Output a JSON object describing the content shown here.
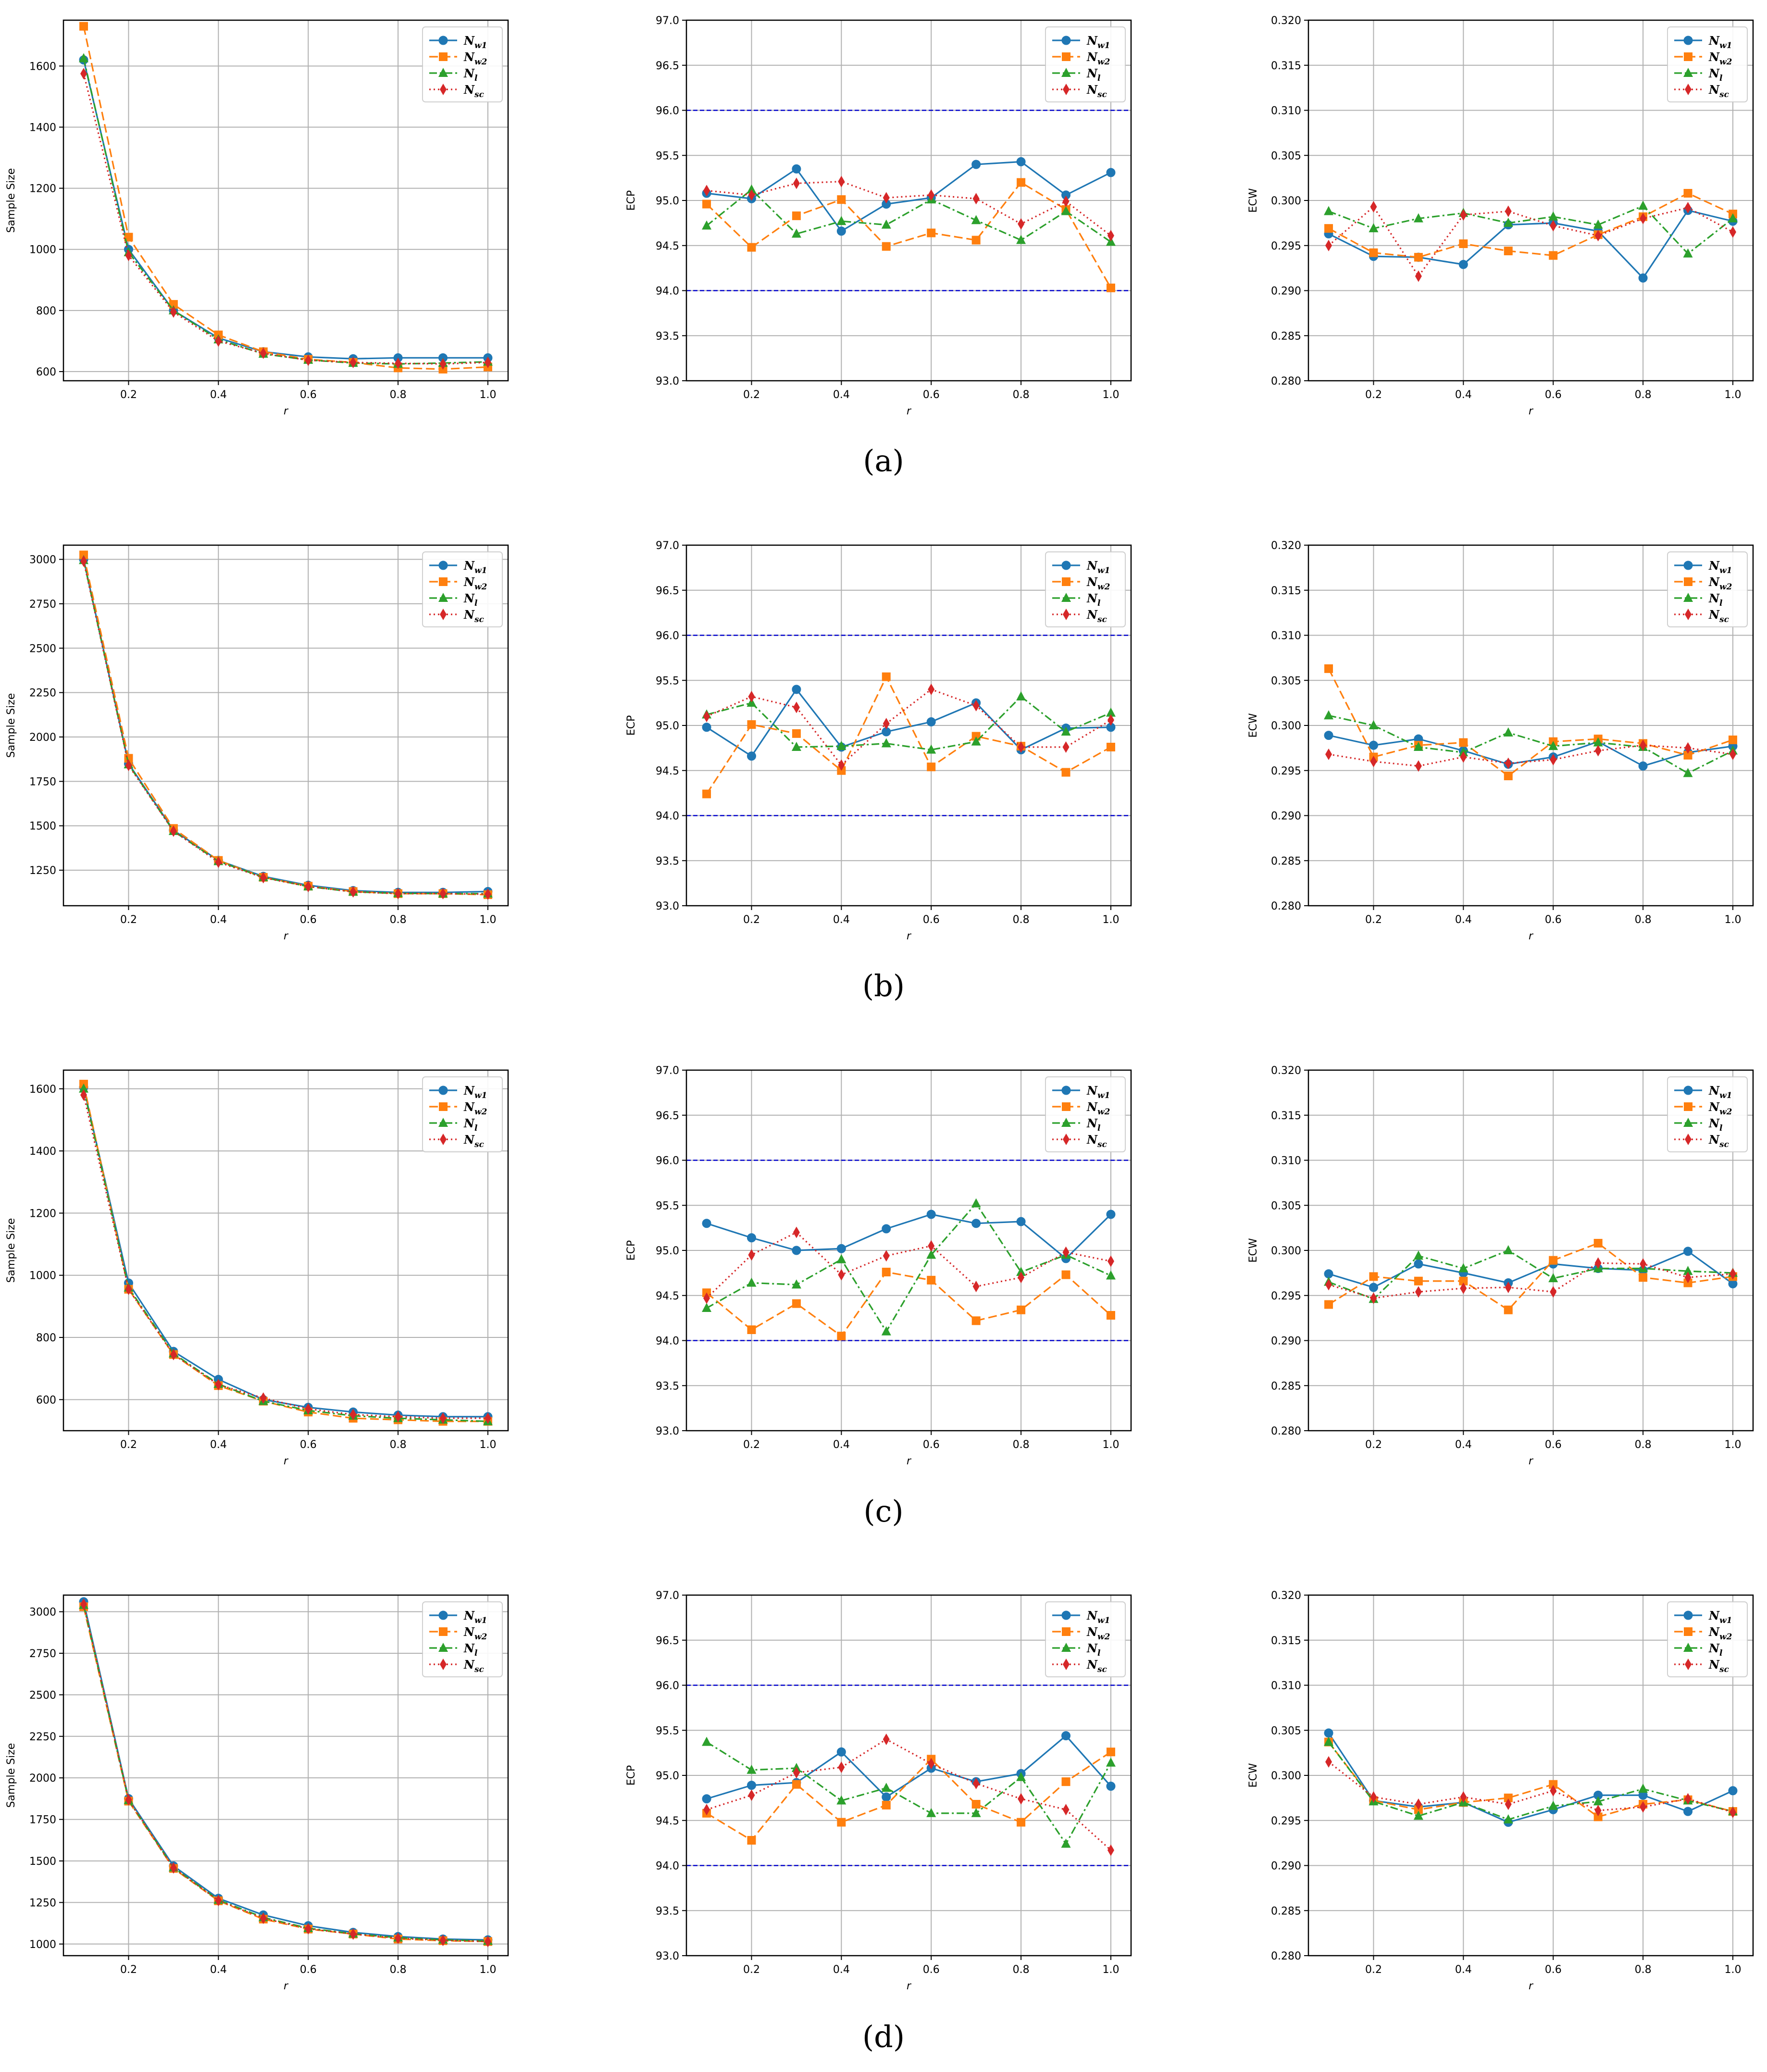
{
  "x": [
    0.1,
    0.2,
    0.3,
    0.4,
    0.5,
    0.6,
    0.7,
    0.8,
    0.9,
    1.0
  ],
  "legend_labels": [
    "N",
    "N",
    "N",
    "N"
  ],
  "legend_subs": [
    "w1",
    "w2",
    "l",
    "sc"
  ],
  "x_ticks": [
    "0.2",
    "0.4",
    "0.6",
    "0.8",
    "1.0"
  ],
  "series_styles": [
    {
      "name": "N_w1",
      "color": "#1f77b4",
      "marker": "circle",
      "dash": ""
    },
    {
      "name": "N_w2",
      "color": "#ff7f0e",
      "marker": "square",
      "dash": "18,8"
    },
    {
      "name": "N_l",
      "color": "#2ca02c",
      "marker": "triangle",
      "dash": "16,6,4,6"
    },
    {
      "name": "N_sc",
      "color": "#d62728",
      "marker": "diamond",
      "dash": "3,6"
    }
  ],
  "ref_line_color": "#0000cc",
  "chart_data": [
    {
      "panel": "a",
      "type": "line",
      "xlabel": "r",
      "ylabel": "Sample Size",
      "ylim": [
        570,
        1750
      ],
      "yticks": [
        "600",
        "800",
        "1000",
        "1200",
        "1400",
        "1600"
      ],
      "series": [
        {
          "name": "N_w1",
          "values": [
            1620,
            1000,
            800,
            710,
            665,
            648,
            642,
            645,
            645,
            645
          ]
        },
        {
          "name": "N_w2",
          "values": [
            1730,
            1040,
            820,
            720,
            665,
            640,
            630,
            612,
            608,
            615
          ]
        },
        {
          "name": "N_l",
          "values": [
            1625,
            990,
            800,
            705,
            658,
            638,
            628,
            625,
            628,
            632
          ]
        },
        {
          "name": "N_sc",
          "values": [
            1575,
            980,
            795,
            700,
            660,
            637,
            630,
            627,
            625,
            630
          ]
        }
      ]
    },
    {
      "panel": "a",
      "type": "line",
      "xlabel": "r",
      "ylabel": "ECP",
      "ylim": [
        93.0,
        97.0
      ],
      "yticks": [
        "93.0",
        "93.5",
        "94.0",
        "94.5",
        "95.0",
        "95.5",
        "96.0",
        "96.5",
        "97.0"
      ],
      "ref_lines": [
        94.0,
        96.0
      ],
      "series": [
        {
          "name": "N_w1",
          "values": [
            95.08,
            95.02,
            95.35,
            94.66,
            94.96,
            95.03,
            95.4,
            95.43,
            95.06,
            95.31
          ]
        },
        {
          "name": "N_w2",
          "values": [
            94.96,
            94.48,
            94.83,
            95.01,
            94.49,
            94.64,
            94.56,
            95.2,
            94.9,
            94.03
          ]
        },
        {
          "name": "N_l",
          "values": [
            94.72,
            95.12,
            94.63,
            94.77,
            94.73,
            95.01,
            94.78,
            94.56,
            94.88,
            94.54
          ]
        },
        {
          "name": "N_sc",
          "values": [
            95.11,
            95.06,
            95.19,
            95.21,
            95.03,
            95.06,
            95.02,
            94.74,
            94.99,
            94.61
          ]
        }
      ]
    },
    {
      "panel": "a",
      "type": "line",
      "xlabel": "r",
      "ylabel": "ECW",
      "ylim": [
        0.28,
        0.32
      ],
      "yticks": [
        "0.280",
        "0.285",
        "0.290",
        "0.295",
        "0.300",
        "0.305",
        "0.310",
        "0.315",
        "0.320"
      ],
      "series": [
        {
          "name": "N_w1",
          "values": [
            0.2963,
            0.2938,
            0.2937,
            0.2929,
            0.2973,
            0.2975,
            0.2966,
            0.2914,
            0.2989,
            0.2977
          ]
        },
        {
          "name": "N_w2",
          "values": [
            0.2969,
            0.2942,
            0.2937,
            0.2952,
            0.2944,
            0.2939,
            0.2962,
            0.2982,
            0.3008,
            0.2985
          ]
        },
        {
          "name": "N_l",
          "values": [
            0.2988,
            0.2969,
            0.298,
            0.2986,
            0.2975,
            0.2982,
            0.2973,
            0.2994,
            0.2941,
            0.298
          ]
        },
        {
          "name": "N_sc",
          "values": [
            0.295,
            0.2993,
            0.2916,
            0.2984,
            0.2988,
            0.2972,
            0.2961,
            0.298,
            0.2992,
            0.2965
          ]
        }
      ]
    },
    {
      "panel": "b",
      "type": "line",
      "xlabel": "r",
      "ylabel": "Sample Size",
      "ylim": [
        1050,
        3080
      ],
      "yticks": [
        "1250",
        "1500",
        "1750",
        "2000",
        "2250",
        "2500",
        "2750",
        "3000"
      ],
      "series": [
        {
          "name": "N_w1",
          "values": [
            3000,
            1850,
            1475,
            1305,
            1215,
            1165,
            1135,
            1125,
            1125,
            1130
          ]
        },
        {
          "name": "N_w2",
          "values": [
            3025,
            1880,
            1485,
            1305,
            1210,
            1160,
            1130,
            1118,
            1118,
            1112
          ]
        },
        {
          "name": "N_l",
          "values": [
            2995,
            1845,
            1470,
            1300,
            1210,
            1158,
            1128,
            1120,
            1118,
            1118
          ]
        },
        {
          "name": "N_sc",
          "values": [
            2990,
            1840,
            1470,
            1295,
            1208,
            1158,
            1128,
            1118,
            1118,
            1115
          ]
        }
      ]
    },
    {
      "panel": "b",
      "type": "line",
      "xlabel": "r",
      "ylabel": "ECP",
      "ylim": [
        93.0,
        97.0
      ],
      "yticks": [
        "93.0",
        "93.5",
        "94.0",
        "94.5",
        "95.0",
        "95.5",
        "96.0",
        "96.5",
        "97.0"
      ],
      "ref_lines": [
        94.0,
        96.0
      ],
      "series": [
        {
          "name": "N_w1",
          "values": [
            94.98,
            94.66,
            95.4,
            94.76,
            94.93,
            95.04,
            95.25,
            94.73,
            94.97,
            94.98
          ]
        },
        {
          "name": "N_w2",
          "values": [
            94.24,
            95.01,
            94.91,
            94.5,
            95.54,
            94.54,
            94.88,
            94.77,
            94.48,
            94.76
          ]
        },
        {
          "name": "N_l",
          "values": [
            95.12,
            95.25,
            94.76,
            94.77,
            94.8,
            94.73,
            94.82,
            95.32,
            94.93,
            95.14
          ]
        },
        {
          "name": "N_sc",
          "values": [
            95.1,
            95.32,
            95.2,
            94.56,
            95.02,
            95.4,
            95.22,
            94.76,
            94.76,
            95.06
          ]
        }
      ]
    },
    {
      "panel": "b",
      "type": "line",
      "xlabel": "r",
      "ylabel": "ECW",
      "ylim": [
        0.28,
        0.32
      ],
      "yticks": [
        "0.280",
        "0.285",
        "0.290",
        "0.295",
        "0.300",
        "0.305",
        "0.310",
        "0.315",
        "0.320"
      ],
      "series": [
        {
          "name": "N_w1",
          "values": [
            0.2989,
            0.2978,
            0.2985,
            0.2972,
            0.2957,
            0.2965,
            0.2982,
            0.2955,
            0.297,
            0.2977
          ]
        },
        {
          "name": "N_w2",
          "values": [
            0.3063,
            0.2965,
            0.2978,
            0.2981,
            0.2944,
            0.2982,
            0.2985,
            0.298,
            0.2967,
            0.2984
          ]
        },
        {
          "name": "N_l",
          "values": [
            0.3011,
            0.3,
            0.2976,
            0.297,
            0.2992,
            0.2977,
            0.2981,
            0.2976,
            0.2947,
            0.2972
          ]
        },
        {
          "name": "N_sc",
          "values": [
            0.2968,
            0.296,
            0.2955,
            0.2965,
            0.2958,
            0.2962,
            0.2972,
            0.2978,
            0.2975,
            0.2968
          ]
        }
      ]
    },
    {
      "panel": "c",
      "type": "line",
      "xlabel": "r",
      "ylabel": "Sample Size",
      "ylim": [
        500,
        1660
      ],
      "yticks": [
        "600",
        "800",
        "1000",
        "1200",
        "1400",
        "1600"
      ],
      "series": [
        {
          "name": "N_w1",
          "values": [
            1605,
            975,
            755,
            665,
            600,
            575,
            560,
            550,
            545,
            545
          ]
        },
        {
          "name": "N_w2",
          "values": [
            1615,
            955,
            745,
            645,
            595,
            560,
            540,
            535,
            530,
            530
          ]
        },
        {
          "name": "N_l",
          "values": [
            1600,
            960,
            748,
            650,
            595,
            565,
            548,
            540,
            535,
            530
          ]
        },
        {
          "name": "N_sc",
          "values": [
            1580,
            955,
            745,
            648,
            605,
            570,
            552,
            545,
            540,
            540
          ]
        }
      ]
    },
    {
      "panel": "c",
      "type": "line",
      "xlabel": "r",
      "ylabel": "ECP",
      "ylim": [
        93.0,
        97.0
      ],
      "yticks": [
        "93.0",
        "93.5",
        "94.0",
        "94.5",
        "95.0",
        "95.5",
        "96.0",
        "96.5",
        "97.0"
      ],
      "ref_lines": [
        94.0,
        96.0
      ],
      "series": [
        {
          "name": "N_w1",
          "values": [
            95.3,
            95.14,
            95.0,
            95.02,
            95.24,
            95.4,
            95.3,
            95.32,
            94.91,
            95.4
          ]
        },
        {
          "name": "N_w2",
          "values": [
            94.53,
            94.12,
            94.41,
            94.05,
            94.76,
            94.67,
            94.22,
            94.34,
            94.73,
            94.28
          ]
        },
        {
          "name": "N_l",
          "values": [
            94.36,
            94.64,
            94.62,
            94.9,
            94.1,
            94.95,
            95.52,
            94.76,
            94.95,
            94.72
          ]
        },
        {
          "name": "N_sc",
          "values": [
            94.47,
            94.95,
            95.2,
            94.73,
            94.94,
            95.05,
            94.6,
            94.7,
            94.98,
            94.88
          ]
        }
      ]
    },
    {
      "panel": "c",
      "type": "line",
      "xlabel": "r",
      "ylabel": "ECW",
      "ylim": [
        0.28,
        0.32
      ],
      "yticks": [
        "0.280",
        "0.285",
        "0.290",
        "0.295",
        "0.300",
        "0.305",
        "0.310",
        "0.315",
        "0.320"
      ],
      "series": [
        {
          "name": "N_w1",
          "values": [
            0.2974,
            0.2959,
            0.2985,
            0.2975,
            0.2964,
            0.2985,
            0.298,
            0.2978,
            0.2999,
            0.2963
          ]
        },
        {
          "name": "N_w2",
          "values": [
            0.294,
            0.2971,
            0.2966,
            0.2966,
            0.2934,
            0.2989,
            0.3008,
            0.297,
            0.2964,
            0.2971
          ]
        },
        {
          "name": "N_l",
          "values": [
            0.2965,
            0.2946,
            0.2994,
            0.298,
            0.3,
            0.2969,
            0.298,
            0.298,
            0.2977,
            0.2975
          ]
        },
        {
          "name": "N_sc",
          "values": [
            0.2962,
            0.2947,
            0.2954,
            0.2958,
            0.2959,
            0.2954,
            0.2986,
            0.2985,
            0.297,
            0.2974
          ]
        }
      ]
    },
    {
      "panel": "d",
      "type": "line",
      "xlabel": "r",
      "ylabel": "Sample Size",
      "ylim": [
        930,
        3100
      ],
      "yticks": [
        "1000",
        "1250",
        "1500",
        "1750",
        "2000",
        "2250",
        "2500",
        "2750",
        "3000"
      ],
      "series": [
        {
          "name": "N_w1",
          "values": [
            3060,
            1875,
            1470,
            1275,
            1175,
            1110,
            1070,
            1045,
            1030,
            1025
          ]
        },
        {
          "name": "N_w2",
          "values": [
            3030,
            1860,
            1455,
            1260,
            1150,
            1090,
            1060,
            1030,
            1020,
            1015
          ]
        },
        {
          "name": "N_l",
          "values": [
            3040,
            1865,
            1460,
            1265,
            1160,
            1095,
            1062,
            1038,
            1025,
            1018
          ]
        },
        {
          "name": "N_sc",
          "values": [
            3045,
            1868,
            1458,
            1262,
            1155,
            1092,
            1060,
            1035,
            1022,
            1015
          ]
        }
      ]
    },
    {
      "panel": "d",
      "type": "line",
      "xlabel": "r",
      "ylabel": "ECP",
      "ylim": [
        93.0,
        97.0
      ],
      "yticks": [
        "93.0",
        "93.5",
        "94.0",
        "94.5",
        "95.0",
        "95.5",
        "96.0",
        "96.5",
        "97.0"
      ],
      "ref_lines": [
        94.0,
        96.0
      ],
      "series": [
        {
          "name": "N_w1",
          "values": [
            94.74,
            94.89,
            94.92,
            95.26,
            94.76,
            95.08,
            94.93,
            95.02,
            95.44,
            94.88
          ]
        },
        {
          "name": "N_w2",
          "values": [
            94.58,
            94.28,
            94.9,
            94.48,
            94.67,
            95.18,
            94.68,
            94.48,
            94.93,
            95.26
          ]
        },
        {
          "name": "N_l",
          "values": [
            95.37,
            95.06,
            95.08,
            94.72,
            94.86,
            94.58,
            94.58,
            94.98,
            94.24,
            95.14
          ]
        },
        {
          "name": "N_sc",
          "values": [
            94.62,
            94.78,
            95.03,
            95.09,
            95.4,
            95.13,
            94.91,
            94.74,
            94.62,
            94.17
          ]
        }
      ]
    },
    {
      "panel": "d",
      "type": "line",
      "xlabel": "r",
      "ylabel": "ECW",
      "ylim": [
        0.28,
        0.32
      ],
      "yticks": [
        "0.280",
        "0.285",
        "0.290",
        "0.295",
        "0.300",
        "0.305",
        "0.310",
        "0.315",
        "0.320"
      ],
      "series": [
        {
          "name": "N_w1",
          "values": [
            0.3047,
            0.2972,
            0.2965,
            0.297,
            0.2948,
            0.2962,
            0.2978,
            0.2978,
            0.296,
            0.2983
          ]
        },
        {
          "name": "N_w2",
          "values": [
            0.3037,
            0.2972,
            0.2962,
            0.297,
            0.2975,
            0.299,
            0.2954,
            0.2968,
            0.2973,
            0.296
          ]
        },
        {
          "name": "N_l",
          "values": [
            0.3037,
            0.2971,
            0.2955,
            0.297,
            0.2951,
            0.2966,
            0.2971,
            0.2985,
            0.2972,
            0.296
          ]
        },
        {
          "name": "N_sc",
          "values": [
            0.3015,
            0.2976,
            0.2968,
            0.2976,
            0.2968,
            0.2983,
            0.2961,
            0.2965,
            0.2974,
            0.2959
          ]
        }
      ]
    }
  ],
  "panel_labels": [
    "(a)",
    "(b)",
    "(c)",
    "(d)"
  ]
}
